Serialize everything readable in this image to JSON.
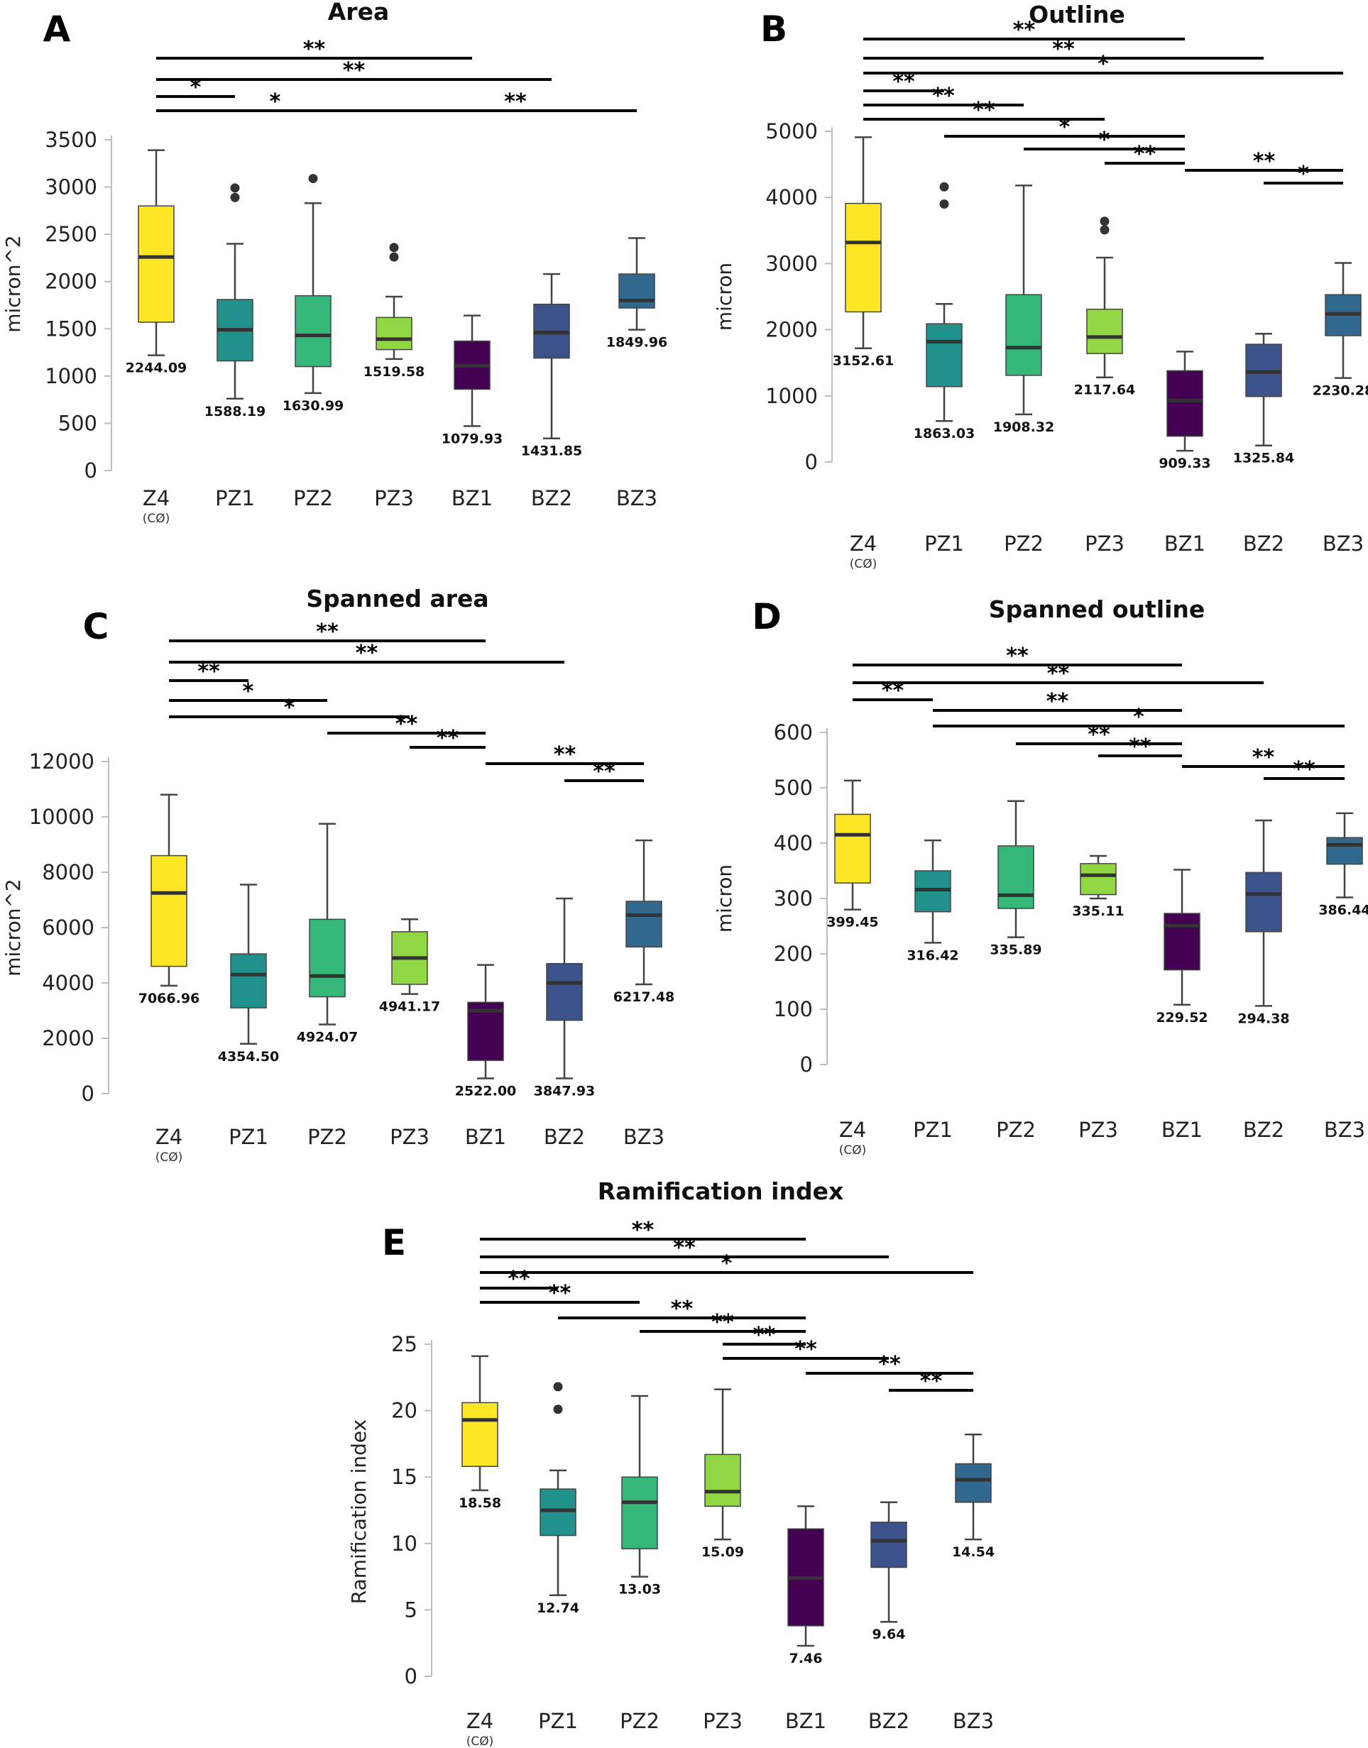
{
  "categories": [
    "Z4",
    "PZ1",
    "PZ2",
    "PZ3",
    "BZ1",
    "BZ2",
    "BZ3"
  ],
  "z4_sublabel": "(CØ)",
  "colors": {
    "Z4": "#fde725",
    "PZ1": "#21918c",
    "PZ2": "#35b779",
    "PZ3": "#90d743",
    "BZ1": "#440154",
    "BZ2": "#3b528b",
    "BZ3": "#31688e"
  },
  "chart_data": [
    {
      "panel": "A",
      "type": "box",
      "title": "Area",
      "ylabel": "micron^2",
      "ylim": [
        0,
        3500
      ],
      "yticks": [
        0,
        500,
        1000,
        1500,
        2000,
        2500,
        3000,
        3500
      ],
      "boxes": [
        {
          "group": "Z4",
          "whisker_low": 1220,
          "q1": 1570,
          "median": 2260,
          "q3": 2800,
          "whisker_high": 3390,
          "outliers": [],
          "mean_label": "2244.09"
        },
        {
          "group": "PZ1",
          "whisker_low": 760,
          "q1": 1160,
          "median": 1490,
          "q3": 1810,
          "whisker_high": 2400,
          "outliers": [
            2890,
            2990
          ],
          "mean_label": "1588.19"
        },
        {
          "group": "PZ2",
          "whisker_low": 820,
          "q1": 1100,
          "median": 1430,
          "q3": 1850,
          "whisker_high": 2830,
          "outliers": [
            3090
          ],
          "mean_label": "1630.99"
        },
        {
          "group": "PZ3",
          "whisker_low": 1180,
          "q1": 1280,
          "median": 1390,
          "q3": 1620,
          "whisker_high": 1840,
          "outliers": [
            2260,
            2360
          ],
          "mean_label": "1519.58"
        },
        {
          "group": "BZ1",
          "whisker_low": 470,
          "q1": 860,
          "median": 1110,
          "q3": 1370,
          "whisker_high": 1640,
          "outliers": [],
          "mean_label": "1079.93"
        },
        {
          "group": "BZ2",
          "whisker_low": 340,
          "q1": 1190,
          "median": 1460,
          "q3": 1760,
          "whisker_high": 2080,
          "outliers": [],
          "mean_label": "1431.85"
        },
        {
          "group": "BZ3",
          "whisker_low": 1490,
          "q1": 1720,
          "median": 1800,
          "q3": 2080,
          "whisker_high": 2460,
          "outliers": [],
          "mean_label": "1849.96"
        }
      ],
      "significance": [
        {
          "from": "Z4",
          "to": "BZ1",
          "label": "**"
        },
        {
          "from": "Z4",
          "to": "BZ2",
          "label": "**"
        },
        {
          "from": "Z4",
          "to": "PZ1",
          "label": "*"
        },
        {
          "from": "Z4",
          "to": "PZ3",
          "label": "*"
        },
        {
          "from": "PZ3",
          "to": "BZ3",
          "label": "**"
        }
      ]
    },
    {
      "panel": "B",
      "type": "box",
      "title": "Outline",
      "ylabel": "micron",
      "ylim": [
        0,
        5000
      ],
      "yticks": [
        0,
        1000,
        2000,
        3000,
        4000,
        5000
      ],
      "boxes": [
        {
          "group": "Z4",
          "whisker_low": 1720,
          "q1": 2270,
          "median": 3320,
          "q3": 3910,
          "whisker_high": 4910,
          "outliers": [],
          "mean_label": "3152.61"
        },
        {
          "group": "PZ1",
          "whisker_low": 620,
          "q1": 1140,
          "median": 1820,
          "q3": 2090,
          "whisker_high": 2390,
          "outliers": [
            3900,
            4160
          ],
          "mean_label": "1863.03"
        },
        {
          "group": "PZ2",
          "whisker_low": 720,
          "q1": 1310,
          "median": 1730,
          "q3": 2530,
          "whisker_high": 4180,
          "outliers": [],
          "mean_label": "1908.32"
        },
        {
          "group": "PZ3",
          "whisker_low": 1280,
          "q1": 1640,
          "median": 1890,
          "q3": 2310,
          "whisker_high": 3090,
          "outliers": [
            3510,
            3640
          ],
          "mean_label": "2117.64"
        },
        {
          "group": "BZ1",
          "whisker_low": 170,
          "q1": 390,
          "median": 930,
          "q3": 1380,
          "whisker_high": 1670,
          "outliers": [],
          "mean_label": "909.33"
        },
        {
          "group": "BZ2",
          "whisker_low": 250,
          "q1": 990,
          "median": 1360,
          "q3": 1780,
          "whisker_high": 1940,
          "outliers": [],
          "mean_label": "1325.84"
        },
        {
          "group": "BZ3",
          "whisker_low": 1270,
          "q1": 1910,
          "median": 2240,
          "q3": 2530,
          "whisker_high": 3010,
          "outliers": [],
          "mean_label": "2230.28"
        }
      ],
      "significance": [
        {
          "from": "Z4",
          "to": "BZ1",
          "label": "**"
        },
        {
          "from": "Z4",
          "to": "BZ2",
          "label": "**"
        },
        {
          "from": "Z4",
          "to": "BZ3",
          "label": "*"
        },
        {
          "from": "Z4",
          "to": "PZ1",
          "label": "**"
        },
        {
          "from": "Z4",
          "to": "PZ2",
          "label": "**"
        },
        {
          "from": "Z4",
          "to": "PZ3",
          "label": "**"
        },
        {
          "from": "PZ1",
          "to": "BZ1",
          "label": "*"
        },
        {
          "from": "PZ2",
          "to": "BZ1",
          "label": "*"
        },
        {
          "from": "PZ3",
          "to": "BZ1",
          "label": "**"
        },
        {
          "from": "BZ1",
          "to": "BZ3",
          "label": "**"
        },
        {
          "from": "BZ2",
          "to": "BZ3",
          "label": "*"
        }
      ]
    },
    {
      "panel": "C",
      "type": "box",
      "title": "Spanned area",
      "ylabel": "micron^2",
      "ylim": [
        0,
        12000
      ],
      "yticks": [
        0,
        2000,
        4000,
        6000,
        8000,
        10000,
        12000
      ],
      "boxes": [
        {
          "group": "Z4",
          "whisker_low": 3900,
          "q1": 4600,
          "median": 7250,
          "q3": 8600,
          "whisker_high": 10800,
          "outliers": [],
          "mean_label": "7066.96"
        },
        {
          "group": "PZ1",
          "whisker_low": 1800,
          "q1": 3100,
          "median": 4300,
          "q3": 5050,
          "whisker_high": 7550,
          "outliers": [],
          "mean_label": "4354.50"
        },
        {
          "group": "PZ2",
          "whisker_low": 2500,
          "q1": 3500,
          "median": 4250,
          "q3": 6300,
          "whisker_high": 9750,
          "outliers": [],
          "mean_label": "4924.07"
        },
        {
          "group": "PZ3",
          "whisker_low": 3600,
          "q1": 3950,
          "median": 4900,
          "q3": 5850,
          "whisker_high": 6300,
          "outliers": [],
          "mean_label": "4941.17"
        },
        {
          "group": "BZ1",
          "whisker_low": 550,
          "q1": 1200,
          "median": 3000,
          "q3": 3300,
          "whisker_high": 4650,
          "outliers": [],
          "mean_label": "2522.00"
        },
        {
          "group": "BZ2",
          "whisker_low": 550,
          "q1": 2650,
          "median": 4000,
          "q3": 4700,
          "whisker_high": 7050,
          "outliers": [],
          "mean_label": "3847.93"
        },
        {
          "group": "BZ3",
          "whisker_low": 3950,
          "q1": 5300,
          "median": 6450,
          "q3": 6950,
          "whisker_high": 9150,
          "outliers": [],
          "mean_label": "6217.48"
        }
      ],
      "significance": [
        {
          "from": "Z4",
          "to": "BZ1",
          "label": "**"
        },
        {
          "from": "Z4",
          "to": "BZ2",
          "label": "**"
        },
        {
          "from": "Z4",
          "to": "PZ1",
          "label": "**"
        },
        {
          "from": "Z4",
          "to": "PZ2",
          "label": "*"
        },
        {
          "from": "Z4",
          "to": "PZ3",
          "label": "*"
        },
        {
          "from": "PZ2",
          "to": "BZ1",
          "label": "**"
        },
        {
          "from": "PZ3",
          "to": "BZ1",
          "label": "**"
        },
        {
          "from": "BZ1",
          "to": "BZ3",
          "label": "**"
        },
        {
          "from": "BZ2",
          "to": "BZ3",
          "label": "**"
        }
      ]
    },
    {
      "panel": "D",
      "type": "box",
      "title": "Spanned outline",
      "ylabel": "micron",
      "ylim": [
        0,
        600
      ],
      "yticks": [
        0,
        100,
        200,
        300,
        400,
        500,
        600
      ],
      "boxes": [
        {
          "group": "Z4",
          "whisker_low": 280,
          "q1": 328,
          "median": 415,
          "q3": 452,
          "whisker_high": 513,
          "outliers": [],
          "mean_label": "399.45"
        },
        {
          "group": "PZ1",
          "whisker_low": 220,
          "q1": 276,
          "median": 316,
          "q3": 350,
          "whisker_high": 405,
          "outliers": [],
          "mean_label": "316.42"
        },
        {
          "group": "PZ2",
          "whisker_low": 230,
          "q1": 282,
          "median": 306,
          "q3": 395,
          "whisker_high": 476,
          "outliers": [],
          "mean_label": "335.89"
        },
        {
          "group": "PZ3",
          "whisker_low": 300,
          "q1": 307,
          "median": 342,
          "q3": 363,
          "whisker_high": 377,
          "outliers": [],
          "mean_label": "335.11"
        },
        {
          "group": "BZ1",
          "whisker_low": 108,
          "q1": 171,
          "median": 251,
          "q3": 273,
          "whisker_high": 352,
          "outliers": [],
          "mean_label": "229.52"
        },
        {
          "group": "BZ2",
          "whisker_low": 106,
          "q1": 240,
          "median": 308,
          "q3": 347,
          "whisker_high": 441,
          "outliers": [],
          "mean_label": "294.38"
        },
        {
          "group": "BZ3",
          "whisker_low": 302,
          "q1": 362,
          "median": 397,
          "q3": 410,
          "whisker_high": 454,
          "outliers": [],
          "mean_label": "386.44"
        }
      ],
      "significance": [
        {
          "from": "Z4",
          "to": "BZ1",
          "label": "**"
        },
        {
          "from": "Z4",
          "to": "BZ2",
          "label": "**"
        },
        {
          "from": "Z4",
          "to": "PZ1",
          "label": "**"
        },
        {
          "from": "PZ1",
          "to": "BZ1",
          "label": "**"
        },
        {
          "from": "PZ1",
          "to": "BZ3",
          "label": "*"
        },
        {
          "from": "PZ2",
          "to": "BZ1",
          "label": "**"
        },
        {
          "from": "PZ3",
          "to": "BZ1",
          "label": "**"
        },
        {
          "from": "BZ1",
          "to": "BZ3",
          "label": "**"
        },
        {
          "from": "BZ2",
          "to": "BZ3",
          "label": "**"
        }
      ]
    },
    {
      "panel": "E",
      "type": "box",
      "title": "Ramification index",
      "ylabel": "Ramification index",
      "ylim": [
        0,
        25
      ],
      "yticks": [
        0,
        5,
        10,
        15,
        20,
        25
      ],
      "boxes": [
        {
          "group": "Z4",
          "whisker_low": 14.0,
          "q1": 15.8,
          "median": 19.3,
          "q3": 20.6,
          "whisker_high": 24.1,
          "outliers": [],
          "mean_label": "18.58"
        },
        {
          "group": "PZ1",
          "whisker_low": 6.1,
          "q1": 10.6,
          "median": 12.5,
          "q3": 14.1,
          "whisker_high": 15.5,
          "outliers": [
            20.1,
            21.8
          ],
          "mean_label": "12.74"
        },
        {
          "group": "PZ2",
          "whisker_low": 7.5,
          "q1": 9.6,
          "median": 13.1,
          "q3": 15.0,
          "whisker_high": 21.1,
          "outliers": [],
          "mean_label": "13.03"
        },
        {
          "group": "PZ3",
          "whisker_low": 10.3,
          "q1": 12.8,
          "median": 13.9,
          "q3": 16.7,
          "whisker_high": 21.6,
          "outliers": [],
          "mean_label": "15.09"
        },
        {
          "group": "BZ1",
          "whisker_low": 2.3,
          "q1": 3.8,
          "median": 7.4,
          "q3": 11.1,
          "whisker_high": 12.8,
          "outliers": [],
          "mean_label": "7.46"
        },
        {
          "group": "BZ2",
          "whisker_low": 4.1,
          "q1": 8.2,
          "median": 10.2,
          "q3": 11.6,
          "whisker_high": 13.1,
          "outliers": [],
          "mean_label": "9.64"
        },
        {
          "group": "BZ3",
          "whisker_low": 10.3,
          "q1": 13.1,
          "median": 14.8,
          "q3": 16.0,
          "whisker_high": 18.2,
          "outliers": [],
          "mean_label": "14.54"
        }
      ],
      "significance": [
        {
          "from": "Z4",
          "to": "BZ1",
          "label": "**"
        },
        {
          "from": "Z4",
          "to": "BZ2",
          "label": "**"
        },
        {
          "from": "Z4",
          "to": "BZ3",
          "label": "*"
        },
        {
          "from": "Z4",
          "to": "PZ1",
          "label": "**"
        },
        {
          "from": "Z4",
          "to": "PZ2",
          "label": "**"
        },
        {
          "from": "PZ1",
          "to": "BZ1",
          "label": "**"
        },
        {
          "from": "PZ2",
          "to": "BZ1",
          "label": "**"
        },
        {
          "from": "PZ3",
          "to": "BZ1",
          "label": "**"
        },
        {
          "from": "PZ3",
          "to": "BZ2",
          "label": "**"
        },
        {
          "from": "BZ1",
          "to": "BZ3",
          "label": "**"
        },
        {
          "from": "BZ2",
          "to": "BZ3",
          "label": "**"
        }
      ]
    }
  ]
}
